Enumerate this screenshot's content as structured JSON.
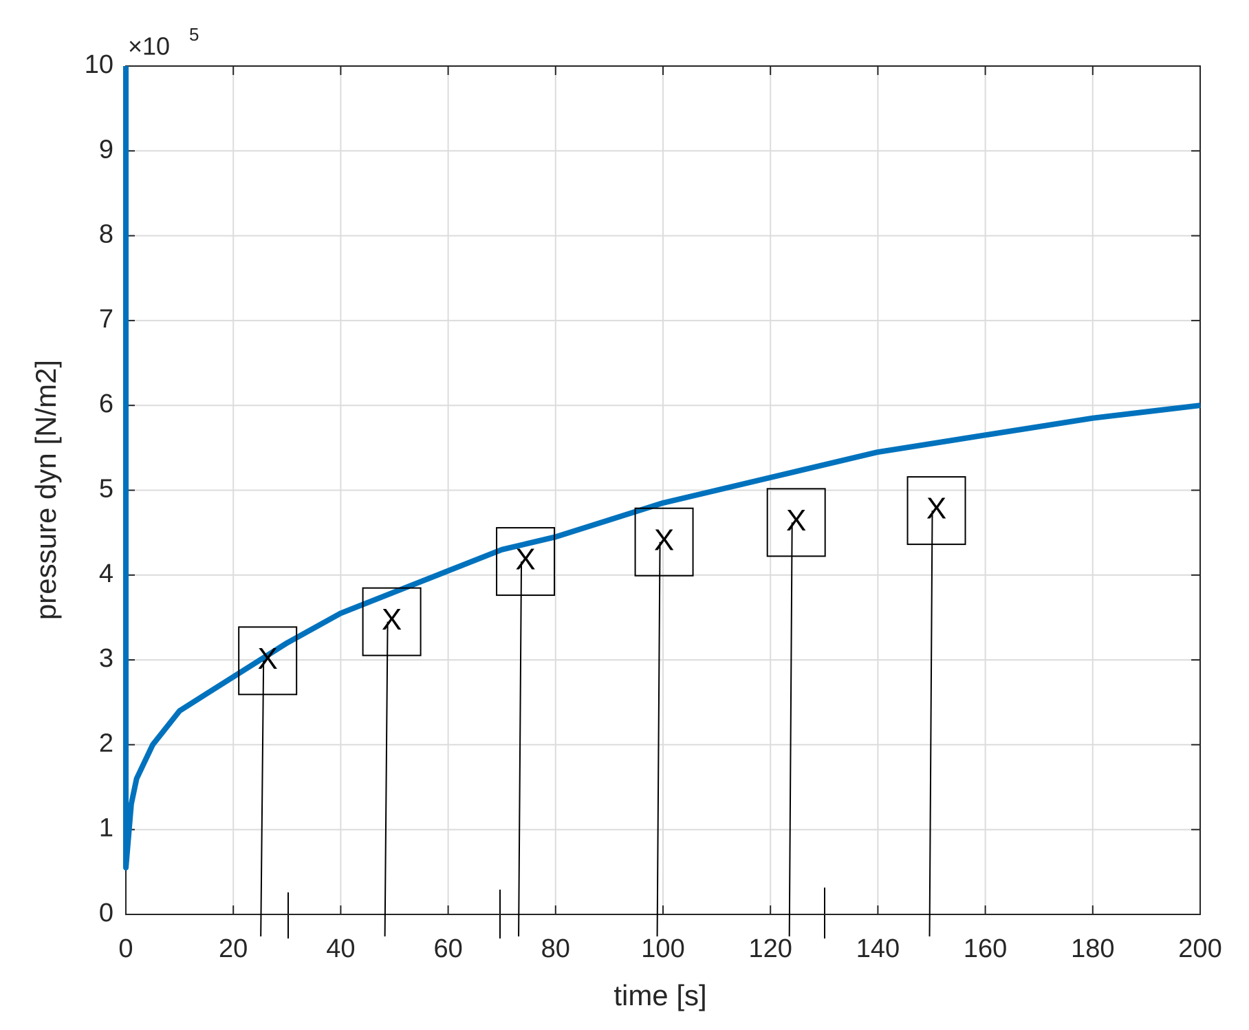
{
  "chart_data": {
    "type": "line",
    "xlabel": "time [s]",
    "ylabel": "pressure dyn [N/m2]",
    "yaxis_multiplier": "×10",
    "yaxis_exponent": "5",
    "x": [
      0,
      0,
      1,
      2,
      5,
      10,
      15,
      20,
      30,
      40,
      50,
      60,
      70,
      80,
      90,
      100,
      120,
      140,
      160,
      180,
      200
    ],
    "series": [
      {
        "color": "#0072bd",
        "values": [
          10,
          0.55,
          1.3,
          1.6,
          2.0,
          2.4,
          2.6,
          2.8,
          3.2,
          3.55,
          3.8,
          4.05,
          4.3,
          4.45,
          4.65,
          4.85,
          5.15,
          5.45,
          5.65,
          5.85,
          6.0
        ]
      }
    ],
    "annotations": [
      {
        "text": "X",
        "x": 26.4,
        "y": 2.99
      },
      {
        "text": "X",
        "x": 49.5,
        "y": 3.45
      },
      {
        "text": "X",
        "x": 74.4,
        "y": 4.16
      },
      {
        "text": "X",
        "x": 100.2,
        "y": 4.39
      },
      {
        "text": "X",
        "x": 124.8,
        "y": 4.62
      },
      {
        "text": "X",
        "x": 150.9,
        "y": 4.76
      }
    ],
    "xlim": [
      0,
      200
    ],
    "xticks": [
      0,
      20,
      40,
      60,
      80,
      100,
      120,
      140,
      160,
      180,
      200
    ],
    "ylim": [
      0,
      10
    ],
    "yticks": [
      0,
      1,
      2,
      3,
      4,
      5,
      6,
      7,
      8,
      9,
      10
    ],
    "grid": true
  }
}
